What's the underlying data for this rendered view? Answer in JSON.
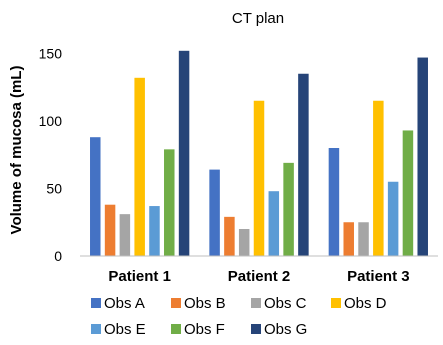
{
  "chart_data": {
    "type": "bar",
    "title": "CT plan",
    "xlabel": "",
    "ylabel": "Volume of mucosa (mL)",
    "categories": [
      "Patient 1",
      "Patient 2",
      "Patient 3"
    ],
    "ylim": [
      0,
      160
    ],
    "yticks": [
      0,
      50,
      100,
      150
    ],
    "grid": false,
    "legend_position": "bottom",
    "series": [
      {
        "name": "Obs A",
        "color": "#4472C4",
        "values": [
          88,
          64,
          80
        ]
      },
      {
        "name": "Obs B",
        "color": "#ED7D31",
        "values": [
          38,
          29,
          25
        ]
      },
      {
        "name": "Obs C",
        "color": "#A5A5A5",
        "values": [
          31,
          20,
          25
        ]
      },
      {
        "name": "Obs D",
        "color": "#FFC000",
        "values": [
          132,
          115,
          115
        ]
      },
      {
        "name": "Obs E",
        "color": "#5B9BD5",
        "values": [
          37,
          48,
          55
        ]
      },
      {
        "name": "Obs F",
        "color": "#70AD47",
        "values": [
          79,
          69,
          93
        ]
      },
      {
        "name": "Obs G",
        "color": "#264478",
        "values": [
          152,
          135,
          147
        ]
      }
    ]
  }
}
